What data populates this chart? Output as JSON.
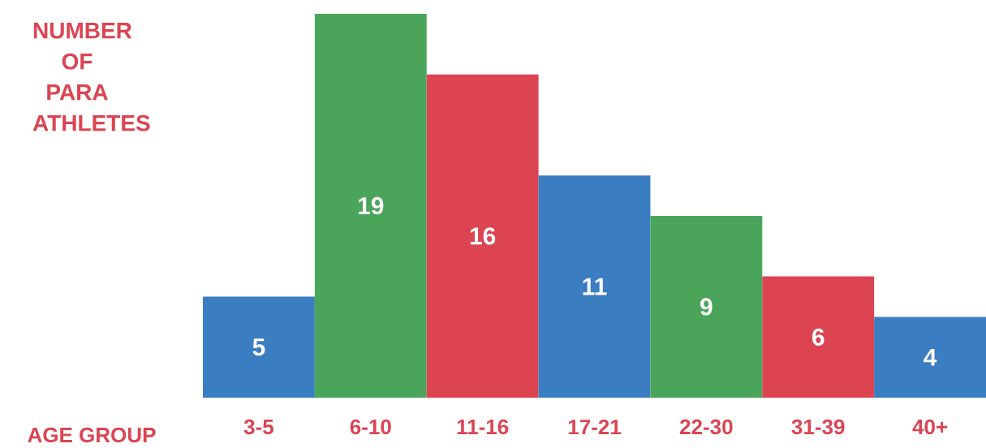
{
  "chart_data": {
    "type": "bar",
    "ylabel": "NUMBER OF PARA ATHLETES",
    "xlabel": "AGE GROUP",
    "categories": [
      "3-5",
      "6-10",
      "11-16",
      "17-21",
      "22-30",
      "31-39",
      "40+"
    ],
    "values": [
      5,
      19,
      16,
      11,
      9,
      6,
      4
    ],
    "colors": [
      "#3a7dc0",
      "#4aa55b",
      "#dc4452",
      "#3a7dc0",
      "#4aa55b",
      "#dc4452",
      "#3a7dc0"
    ],
    "data_labels": true
  }
}
